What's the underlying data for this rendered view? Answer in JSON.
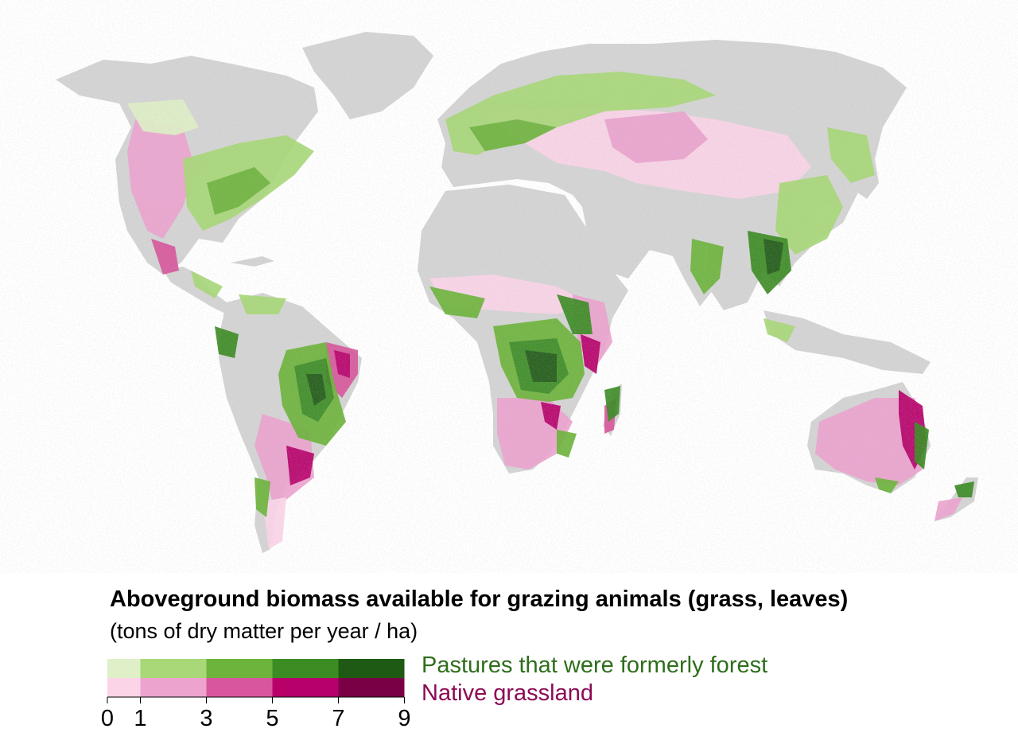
{
  "legend": {
    "title": "Aboveground biomass available for grazing animals (grass, leaves)",
    "subtitle": "(tons of dry matter per year / ha)",
    "forest_label": "Pastures that were formerly forest",
    "grassland_label": "Native grassland",
    "ticks": [
      "0",
      "1",
      "3",
      "5",
      "7",
      "9"
    ],
    "bins": [
      [
        0,
        1
      ],
      [
        1,
        3
      ],
      [
        3,
        5
      ],
      [
        5,
        7
      ],
      [
        7,
        9
      ]
    ],
    "forest_colors": [
      "#dff0c8",
      "#a8d878",
      "#6db43c",
      "#3c8c24",
      "#1e5a14"
    ],
    "grassland_colors": [
      "#fbd4e8",
      "#eca4cf",
      "#d8579c",
      "#b8006b",
      "#7a0046"
    ],
    "forest_text_color": "#2e6e1c",
    "grassland_text_color": "#8c0a55"
  },
  "map": {
    "land_color": "#d4d4d4",
    "ocean_color": "#ffffff"
  }
}
